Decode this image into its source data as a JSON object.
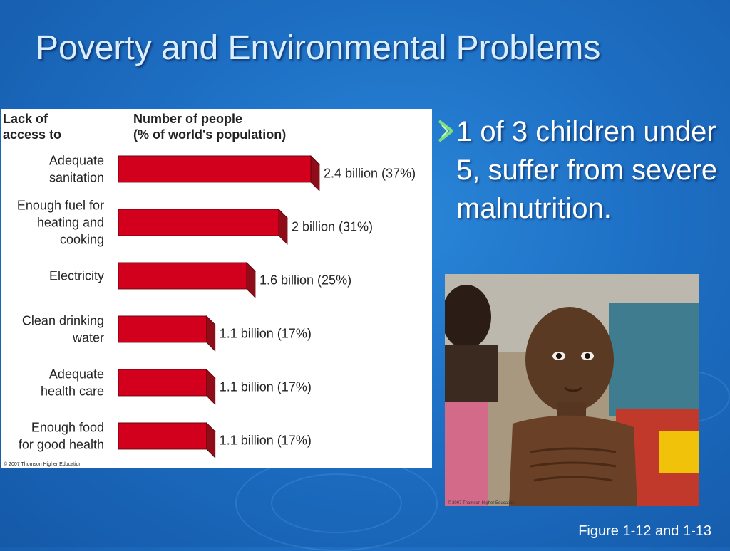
{
  "slide": {
    "title": "Poverty and Environmental Problems",
    "bullet": "1 of 3 children under 5, suffer from severe malnutrition.",
    "figure_ref": "Figure 1-12 and 1-13",
    "photo_credit": "© 2007 Thomson Higher Education"
  },
  "colors": {
    "bar_front": "#d2001c",
    "bar_top": "#ea3545",
    "bar_side": "#8f0d19",
    "bullet_arrow": "#7fe07a"
  },
  "chart_data": {
    "type": "bar",
    "orientation": "horizontal",
    "header_left": [
      "Lack of",
      "access to"
    ],
    "header_right": [
      "Number of people",
      "(% of world's population)"
    ],
    "categories": [
      [
        "Adequate",
        "sanitation"
      ],
      [
        "Enough fuel for",
        "heating and",
        "cooking"
      ],
      [
        "Electricity"
      ],
      [
        "Clean drinking",
        "water"
      ],
      [
        "Adequate",
        "health care"
      ],
      [
        "Enough food",
        "for good health"
      ]
    ],
    "values": [
      2.4,
      2.0,
      1.6,
      1.1,
      1.1,
      1.1
    ],
    "percent": [
      37,
      31,
      25,
      17,
      17,
      17
    ],
    "value_labels": [
      "2.4 billion (37%)",
      "2 billion (31%)",
      "1.6 billion (25%)",
      "1.1 billion (17%)",
      "1.1 billion (17%)",
      "1.1 billion (17%)"
    ],
    "unit": "billion",
    "copyright": "© 2007 Thomson Higher Education"
  }
}
